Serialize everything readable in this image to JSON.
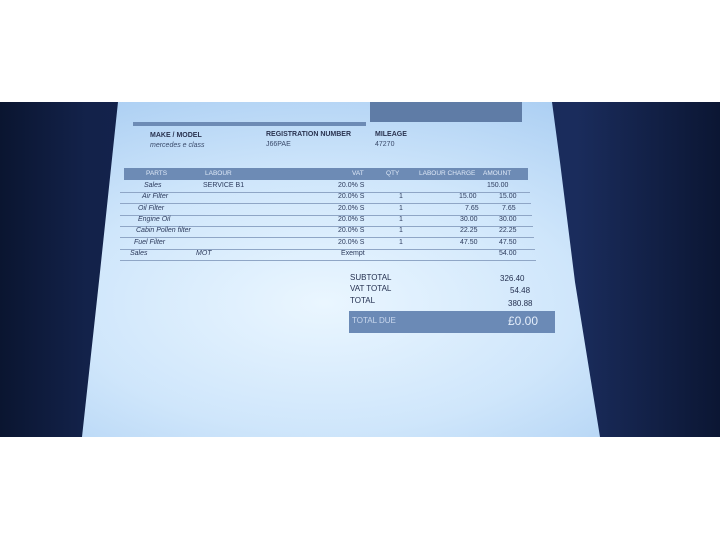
{
  "vehicle": {
    "make_model_label": "MAKE / MODEL",
    "make_model": "mercedes e class",
    "registration_label": "REGISTRATION NUMBER",
    "registration": "J66PAE",
    "mileage_label": "MILEAGE",
    "mileage": "47270"
  },
  "table": {
    "headers": [
      "PARTS",
      "LABOUR",
      "VAT",
      "QTY",
      "LABOUR CHARGE",
      "AMOUNT"
    ],
    "rows": [
      {
        "part": "Sales",
        "labour": "SERVICE B1",
        "vat": "20.0% S",
        "qty": "",
        "charge": "",
        "amount": "150.00"
      },
      {
        "part": "Air Filter",
        "labour": "",
        "vat": "20.0% S",
        "qty": "1",
        "charge": "15.00",
        "amount": "15.00"
      },
      {
        "part": "Oil Filter",
        "labour": "",
        "vat": "20.0% S",
        "qty": "1",
        "charge": "7.65",
        "amount": "7.65"
      },
      {
        "part": "Engine Oil",
        "labour": "",
        "vat": "20.0% S",
        "qty": "1",
        "charge": "30.00",
        "amount": "30.00"
      },
      {
        "part": "Cabin Pollen filter",
        "labour": "",
        "vat": "20.0% S",
        "qty": "1",
        "charge": "22.25",
        "amount": "22.25"
      },
      {
        "part": "Fuel Filter",
        "labour": "",
        "vat": "20.0% S",
        "qty": "1",
        "charge": "47.50",
        "amount": "47.50"
      },
      {
        "part": "Sales",
        "labour": "MOT",
        "vat": "Exempt",
        "qty": "",
        "charge": "",
        "amount": "54.00"
      }
    ]
  },
  "totals": {
    "subtotal_label": "SUBTOTAL",
    "subtotal": "326.40",
    "vat_label": "VAT TOTAL",
    "vat": "54.48",
    "total_label": "TOTAL",
    "total": "380.88",
    "due_label": "TOTAL DUE",
    "due": "£0.00"
  }
}
